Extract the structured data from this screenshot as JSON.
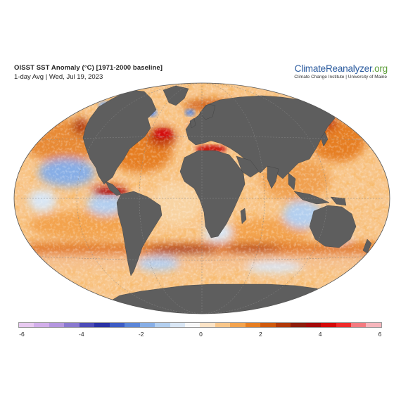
{
  "header": {
    "title": "OISST SST Anomaly (°C) [1971-2000 baseline]",
    "subtitle": "1-day Avg | Wed, Jul 19, 2023",
    "brand_main": "ClimateReanalyzer",
    "brand_tld": ".org",
    "brand_sub": "Climate Change Institute | University of Maine"
  },
  "colorbar": {
    "min": -6,
    "max": 6,
    "tick_labels": [
      "-6",
      "-4",
      "-2",
      "0",
      "2",
      "4",
      "6"
    ],
    "colors": [
      "#e7c9f0",
      "#d2aeea",
      "#b496df",
      "#8a79cf",
      "#4d4cb8",
      "#2a32a5",
      "#3d5cc4",
      "#5b86d8",
      "#87aee6",
      "#b3cfef",
      "#d9e6f4",
      "#f7f7f7",
      "#fbe3c6",
      "#f8c689",
      "#f3a34e",
      "#e67e22",
      "#cf5a0e",
      "#b0390a",
      "#8f1d0c",
      "#a40a0a",
      "#d40a0a",
      "#ef2b2b",
      "#f47a80",
      "#f6b6bc"
    ]
  },
  "map": {
    "projection": "Robinson",
    "land_color": "#5e5e5e",
    "ocean_palette": {
      "neutral": "#f7f1e6",
      "warm_light": "#f8c689",
      "warm": "#f3a34e",
      "warm_strong": "#e67e22",
      "hot": "#c0300c",
      "hot_extreme": "#d40a0a",
      "cool": "#9cc1ea",
      "cool_strong": "#5b86d8"
    }
  }
}
